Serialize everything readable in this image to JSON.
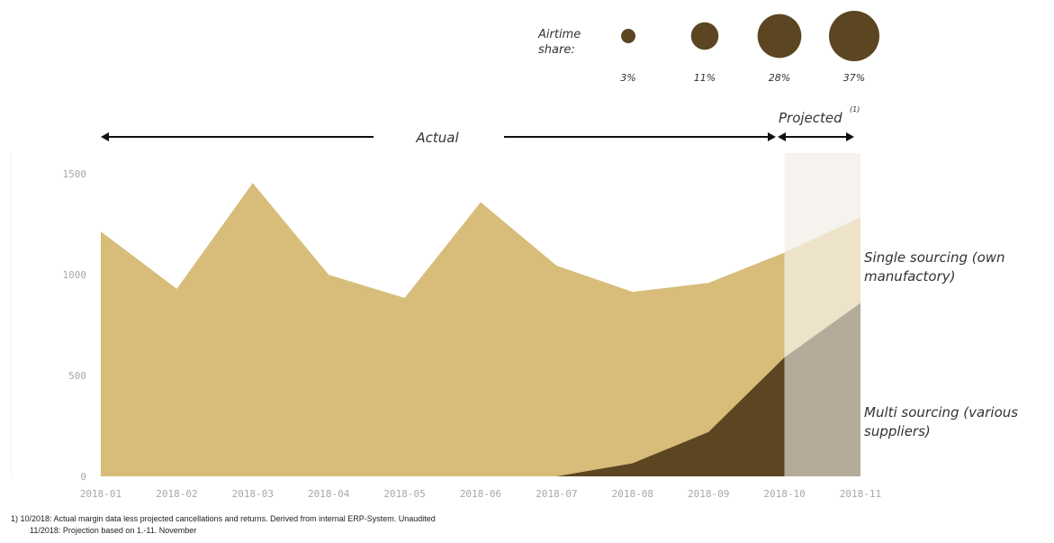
{
  "chart_data": {
    "type": "area",
    "categories": [
      "2018-01",
      "2018-02",
      "2018-03",
      "2018-04",
      "2018-05",
      "2018-06",
      "2018-07",
      "2018-08",
      "2018-09",
      "2018-10",
      "2018-11"
    ],
    "y_ticks": [
      "0",
      "500",
      "1000",
      "1500"
    ],
    "ylim": [
      0,
      1550
    ],
    "series": [
      {
        "name": "Single sourcing (own manufactory)",
        "values": [
          1215,
          930,
          1455,
          1000,
          885,
          1360,
          1045,
          915,
          960,
          1110,
          1285
        ]
      },
      {
        "name": "Multi sourcing (various suppliers)",
        "values": [
          0,
          0,
          0,
          0,
          0,
          0,
          0,
          65,
          220,
          590,
          860
        ]
      }
    ],
    "projected_from_index": 9,
    "colors": {
      "single_actual": "#d7bd79",
      "multi_actual": "#5c4622",
      "single_projected": "#ede3c9",
      "multi_projected": "#b5ab9b",
      "projected_band": "#f6f3ee",
      "bubble": "#5c4622"
    },
    "airtime": {
      "label_line1": "Airtime",
      "label_line2": "share:",
      "items": [
        {
          "label": "3%",
          "value": 3
        },
        {
          "label": "11%",
          "value": 11
        },
        {
          "label": "28%",
          "value": 28
        },
        {
          "label": "37%",
          "value": 37
        }
      ]
    },
    "actual_label": "Actual",
    "projected_label": "Projected",
    "projected_superscript": "(1)",
    "single_label_line1": "Single sourcing (own",
    "single_label_line2": "manufactory)",
    "multi_label_line1": "Multi sourcing (various",
    "multi_label_line2": "suppliers)",
    "footnote_line1": "1) 10/2018: Actual margin data less projected cancellations and returns. Derived from internal ERP-System. Unaudited",
    "footnote_line2": "11/2018: Projection based on 1.-11. November"
  }
}
